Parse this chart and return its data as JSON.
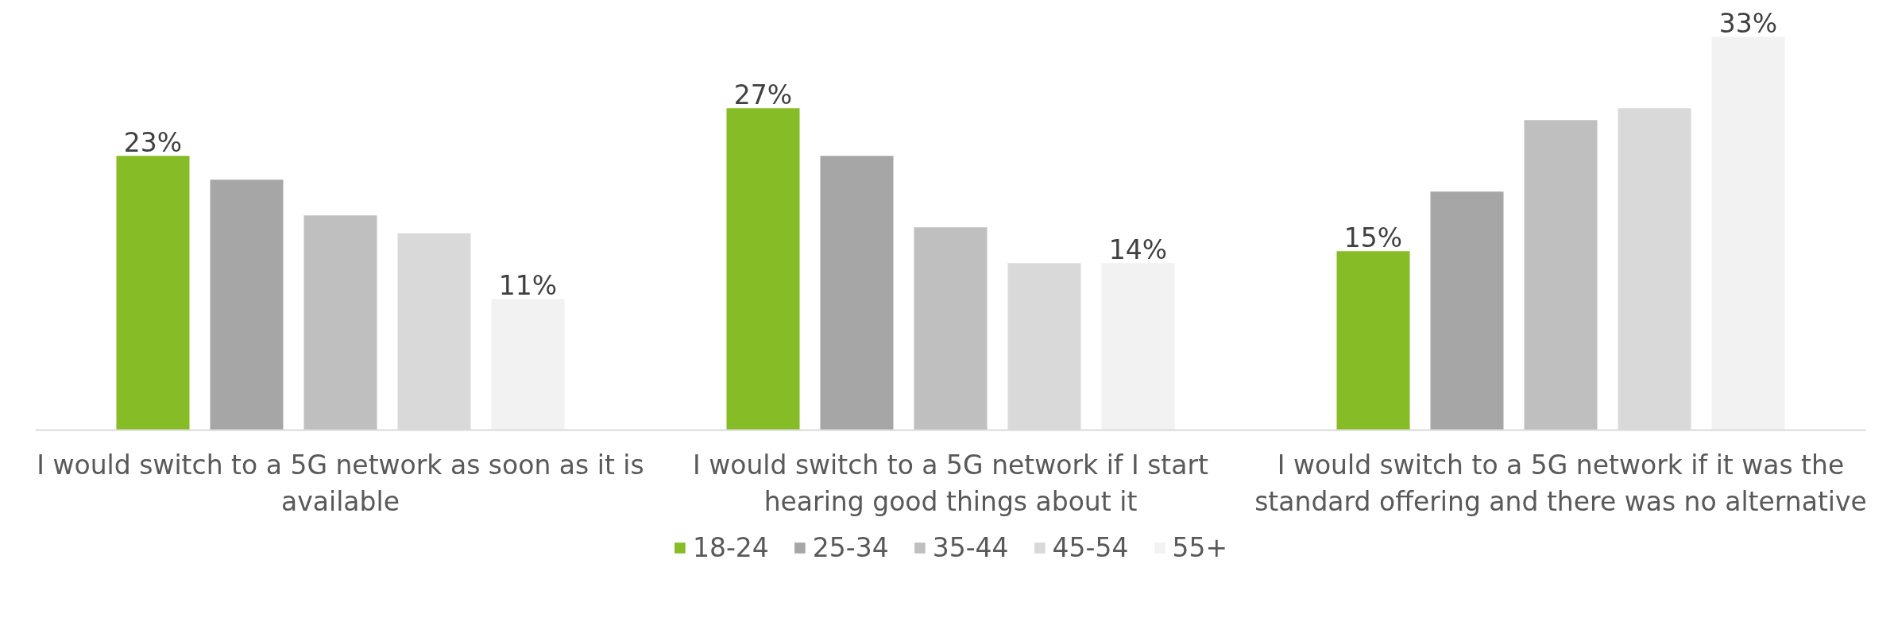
{
  "chart_data": {
    "type": "bar",
    "categories": [
      "I would switch to a 5G network as soon as it is available",
      "I would switch to a 5G network if I start hearing good things about it",
      "I would switch to a 5G network if it was the standard offering and there was no alternative"
    ],
    "series": [
      {
        "name": "18-24",
        "color": "#86bc25",
        "values": [
          23,
          27,
          15
        ],
        "value_labels": [
          "23%",
          "27%",
          "15%"
        ]
      },
      {
        "name": "25-34",
        "color": "#a6a6a6",
        "values": [
          21,
          23,
          20
        ]
      },
      {
        "name": "35-44",
        "color": "#bfbfbf",
        "values": [
          18,
          17,
          26
        ]
      },
      {
        "name": "45-54",
        "color": "#d9d9d9",
        "values": [
          16.5,
          14,
          27
        ]
      },
      {
        "name": "55+",
        "color": "#f2f2f2",
        "values": [
          11,
          14,
          33
        ],
        "value_labels": [
          "11%",
          "14%",
          "33%"
        ]
      }
    ],
    "legend": "bottom",
    "grid": false
  }
}
